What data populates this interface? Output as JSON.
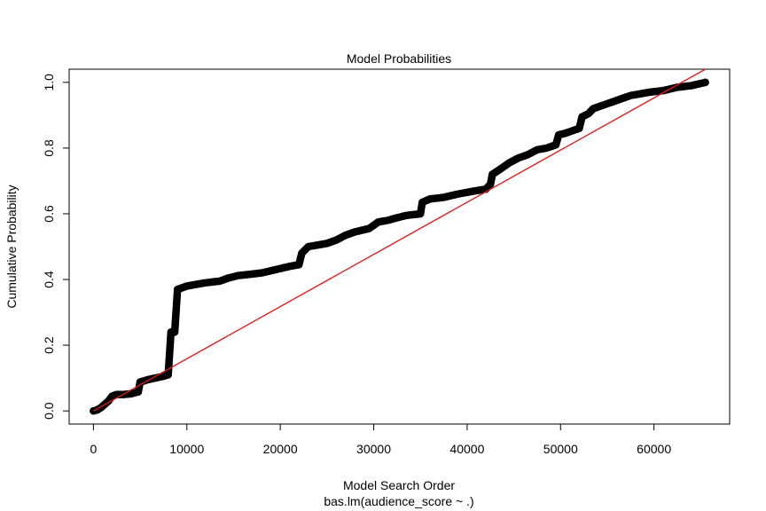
{
  "chart_data": {
    "type": "scatter",
    "title": "Model Probabilities",
    "xlabel": "Model Search Order",
    "xlabel_sub": "bas.lm(audience_score ~ .)",
    "ylabel": "Cumulative Probability",
    "xlim": [
      -2600,
      68100
    ],
    "ylim": [
      -0.04,
      1.04
    ],
    "x_ticks": [
      0,
      10000,
      20000,
      30000,
      40000,
      50000,
      60000
    ],
    "x_tick_labels": [
      "0",
      "10000",
      "20000",
      "30000",
      "40000",
      "50000",
      "60000"
    ],
    "y_ticks": [
      0.0,
      0.2,
      0.4,
      0.6,
      0.8,
      1.0
    ],
    "y_tick_labels": [
      "0.0",
      "0.2",
      "0.4",
      "0.6",
      "0.8",
      "1.0"
    ],
    "grid": false,
    "colors": {
      "points": "#000000",
      "trend": "#e41a1c"
    },
    "series": [
      {
        "values": [
          [
            0,
            0.0
          ],
          [
            400,
            0.003
          ],
          [
            800,
            0.01
          ],
          [
            1200,
            0.02
          ],
          [
            1600,
            0.03
          ],
          [
            2000,
            0.045
          ],
          [
            2500,
            0.05
          ],
          [
            3200,
            0.05
          ],
          [
            4000,
            0.052
          ],
          [
            4800,
            0.058
          ],
          [
            5000,
            0.088
          ],
          [
            5800,
            0.095
          ],
          [
            6600,
            0.1
          ],
          [
            7400,
            0.105
          ],
          [
            8000,
            0.11
          ],
          [
            8300,
            0.24
          ],
          [
            8700,
            0.24
          ],
          [
            9000,
            0.37
          ],
          [
            10000,
            0.38
          ],
          [
            11000,
            0.385
          ],
          [
            12000,
            0.39
          ],
          [
            13500,
            0.395
          ],
          [
            14500,
            0.405
          ],
          [
            15500,
            0.412
          ],
          [
            16500,
            0.415
          ],
          [
            18000,
            0.42
          ],
          [
            19500,
            0.43
          ],
          [
            21000,
            0.44
          ],
          [
            22000,
            0.445
          ],
          [
            22300,
            0.48
          ],
          [
            23000,
            0.5
          ],
          [
            24000,
            0.505
          ],
          [
            25000,
            0.51
          ],
          [
            26000,
            0.52
          ],
          [
            27000,
            0.535
          ],
          [
            28000,
            0.545
          ],
          [
            29500,
            0.555
          ],
          [
            30500,
            0.575
          ],
          [
            31500,
            0.58
          ],
          [
            32500,
            0.588
          ],
          [
            33500,
            0.595
          ],
          [
            35000,
            0.6
          ],
          [
            35200,
            0.635
          ],
          [
            36000,
            0.645
          ],
          [
            37500,
            0.65
          ],
          [
            39000,
            0.66
          ],
          [
            40500,
            0.668
          ],
          [
            42000,
            0.675
          ],
          [
            42500,
            0.69
          ],
          [
            42700,
            0.72
          ],
          [
            43500,
            0.735
          ],
          [
            44500,
            0.755
          ],
          [
            45500,
            0.77
          ],
          [
            46500,
            0.78
          ],
          [
            47500,
            0.795
          ],
          [
            48500,
            0.8
          ],
          [
            49500,
            0.81
          ],
          [
            49800,
            0.84
          ],
          [
            50500,
            0.845
          ],
          [
            51500,
            0.855
          ],
          [
            52000,
            0.86
          ],
          [
            52300,
            0.895
          ],
          [
            53000,
            0.905
          ],
          [
            53500,
            0.92
          ],
          [
            54500,
            0.93
          ],
          [
            55500,
            0.94
          ],
          [
            56500,
            0.95
          ],
          [
            57500,
            0.96
          ],
          [
            58500,
            0.965
          ],
          [
            59500,
            0.97
          ],
          [
            61000,
            0.975
          ],
          [
            62500,
            0.985
          ],
          [
            64000,
            0.99
          ],
          [
            65500,
            1.0
          ]
        ]
      },
      {
        "line": [
          [
            0,
            0.0
          ],
          [
            65500,
            1.04
          ]
        ]
      }
    ]
  }
}
